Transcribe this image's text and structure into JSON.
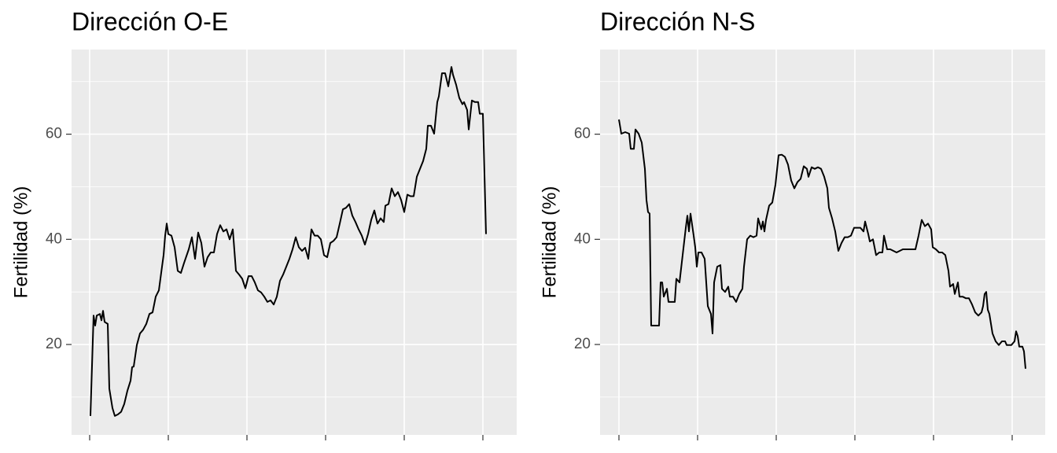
{
  "chart_data": [
    {
      "type": "line",
      "title": "Dirección O-E",
      "ylabel": "Fertilidad (%)",
      "color": "#000000",
      "grid": true,
      "xlim": [
        -23,
        543
      ],
      "xticks": [
        0,
        100,
        200,
        300,
        400,
        500
      ],
      "ylim": [
        2.8,
        76.1
      ],
      "yticks": [
        20,
        40,
        60
      ],
      "yminor": [
        10,
        30,
        50,
        70
      ],
      "x": [
        1,
        5,
        7,
        9,
        13,
        15,
        17,
        19,
        23,
        25,
        29,
        32,
        36,
        40,
        44,
        48,
        52,
        54,
        56,
        60,
        64,
        68,
        72,
        76,
        80,
        84,
        88,
        92,
        94,
        96,
        98,
        100,
        104,
        108,
        112,
        116,
        120,
        126,
        130,
        134,
        138,
        142,
        146,
        150,
        154,
        158,
        162,
        166,
        170,
        174,
        178,
        182,
        186,
        190,
        194,
        198,
        202,
        206,
        210,
        214,
        218,
        222,
        226,
        230,
        234,
        238,
        242,
        246,
        250,
        254,
        258,
        262,
        266,
        270,
        274,
        278,
        282,
        286,
        290,
        294,
        298,
        302,
        306,
        310,
        314,
        318,
        322,
        326,
        330,
        334,
        338,
        342,
        346,
        350,
        354,
        358,
        362,
        366,
        370,
        374,
        376,
        380,
        384,
        388,
        392,
        396,
        400,
        404,
        408,
        412,
        416,
        420,
        424,
        428,
        430,
        434,
        438,
        442,
        444,
        448,
        452,
        456,
        460,
        462,
        466,
        470,
        474,
        476,
        480,
        482,
        486,
        490,
        494,
        496,
        500,
        504
      ],
      "values": [
        6.4,
        25.5,
        23.6,
        25.5,
        25.8,
        24.6,
        26.4,
        24.3,
        23.9,
        11.6,
        7.9,
        6.4,
        6.7,
        7.2,
        8.7,
        11.2,
        13.1,
        15.7,
        15.8,
        19.9,
        22.1,
        22.8,
        23.9,
        25.8,
        26.1,
        29.1,
        30.3,
        34.8,
        37.0,
        40.7,
        43.0,
        41.0,
        40.7,
        38.5,
        34.0,
        33.6,
        35.5,
        38.1,
        40.4,
        36.3,
        41.3,
        39.3,
        34.8,
        36.6,
        37.5,
        37.5,
        41.0,
        42.7,
        41.5,
        41.9,
        40.0,
        41.9,
        34.0,
        33.3,
        32.5,
        30.7,
        33.0,
        33.0,
        31.8,
        30.3,
        29.9,
        29.1,
        28.1,
        28.4,
        27.6,
        29.1,
        32.1,
        33.3,
        34.8,
        36.3,
        38.1,
        40.4,
        38.5,
        37.8,
        38.4,
        36.3,
        41.9,
        40.7,
        40.7,
        40.0,
        37.0,
        36.6,
        39.3,
        39.7,
        40.4,
        43.0,
        45.7,
        46.0,
        46.7,
        44.5,
        43.3,
        41.9,
        40.7,
        39.0,
        41.0,
        43.7,
        45.5,
        43.0,
        44.0,
        43.3,
        46.4,
        46.7,
        49.7,
        48.2,
        49.0,
        47.5,
        45.2,
        48.5,
        48.2,
        48.2,
        51.9,
        53.4,
        54.9,
        57.2,
        61.6,
        61.6,
        60.1,
        66.1,
        67.2,
        71.6,
        71.6,
        69.1,
        72.8,
        71.3,
        69.4,
        66.9,
        65.7,
        66.1,
        64.6,
        60.9,
        66.4,
        66.1,
        66.1,
        63.9,
        63.9,
        41.0
      ]
    },
    {
      "type": "line",
      "title": "Dirección N-S",
      "ylabel": "Fertilidad (%)",
      "color": "#000000",
      "grid": true,
      "xlim": [
        -24,
        542
      ],
      "xticks": [
        0,
        100,
        200,
        300,
        400,
        500
      ],
      "ylim": [
        2.8,
        76.1
      ],
      "yticks": [
        20,
        40,
        60
      ],
      "yminor": [
        10,
        30,
        50,
        70
      ],
      "x": [
        0,
        3,
        8,
        13,
        15,
        19,
        21,
        25,
        29,
        33,
        35,
        37,
        39,
        41,
        51,
        53,
        55,
        57,
        61,
        63,
        71,
        73,
        77,
        81,
        85,
        87,
        89,
        91,
        95,
        97,
        99,
        101,
        105,
        109,
        113,
        117,
        119,
        121,
        125,
        129,
        131,
        135,
        139,
        141,
        145,
        149,
        153,
        157,
        159,
        163,
        167,
        171,
        175,
        177,
        181,
        183,
        185,
        187,
        191,
        195,
        199,
        203,
        207,
        211,
        215,
        219,
        223,
        227,
        231,
        235,
        239,
        241,
        245,
        249,
        253,
        257,
        261,
        265,
        267,
        271,
        275,
        279,
        283,
        287,
        291,
        295,
        299,
        303,
        307,
        311,
        313,
        317,
        319,
        323,
        327,
        331,
        335,
        337,
        341,
        345,
        349,
        353,
        357,
        361,
        365,
        369,
        373,
        377,
        381,
        385,
        389,
        393,
        397,
        399,
        403,
        407,
        411,
        415,
        419,
        421,
        425,
        427,
        431,
        433,
        437,
        441,
        445,
        449,
        453,
        457,
        461,
        463,
        465,
        467,
        469,
        471,
        475,
        479,
        483,
        487,
        491,
        493,
        499,
        503,
        505,
        507,
        509,
        513,
        515,
        517
      ],
      "values": [
        62.8,
        60.1,
        60.4,
        60.1,
        57.2,
        57.2,
        60.9,
        60.1,
        58.4,
        53.4,
        47.5,
        45.2,
        44.9,
        23.6,
        23.6,
        31.8,
        31.8,
        29.1,
        30.6,
        28.1,
        28.1,
        32.5,
        31.8,
        37.0,
        42.2,
        44.5,
        41.5,
        44.9,
        40.7,
        38.5,
        34.8,
        37.5,
        37.5,
        36.3,
        27.3,
        25.8,
        22.1,
        31.8,
        34.8,
        35.1,
        30.6,
        30.0,
        31.0,
        29.1,
        29.1,
        28.1,
        29.6,
        30.6,
        34.8,
        40.0,
        40.7,
        40.4,
        40.7,
        44.0,
        41.9,
        43.4,
        41.5,
        43.7,
        46.4,
        47.0,
        50.4,
        56.0,
        56.1,
        55.7,
        54.2,
        51.2,
        49.7,
        50.9,
        51.5,
        53.9,
        53.4,
        51.9,
        53.7,
        53.4,
        53.7,
        53.4,
        51.9,
        49.7,
        46.0,
        44.0,
        41.5,
        37.8,
        39.3,
        40.4,
        40.4,
        40.7,
        42.2,
        42.2,
        42.2,
        41.5,
        43.4,
        41.0,
        39.6,
        40.0,
        37.0,
        37.5,
        37.5,
        40.7,
        38.1,
        38.1,
        37.8,
        37.5,
        37.8,
        38.1,
        38.1,
        38.1,
        38.1,
        38.1,
        40.7,
        43.7,
        42.5,
        43.0,
        41.9,
        38.5,
        38.1,
        37.5,
        37.5,
        37.0,
        34.0,
        31.0,
        31.5,
        29.6,
        31.8,
        29.1,
        29.1,
        28.8,
        28.8,
        27.6,
        26.1,
        25.5,
        26.1,
        27.3,
        29.6,
        30.0,
        26.6,
        25.8,
        22.1,
        20.6,
        19.9,
        20.6,
        20.6,
        19.9,
        19.9,
        20.6,
        22.5,
        21.6,
        19.6,
        19.6,
        18.7,
        15.4
      ]
    }
  ]
}
